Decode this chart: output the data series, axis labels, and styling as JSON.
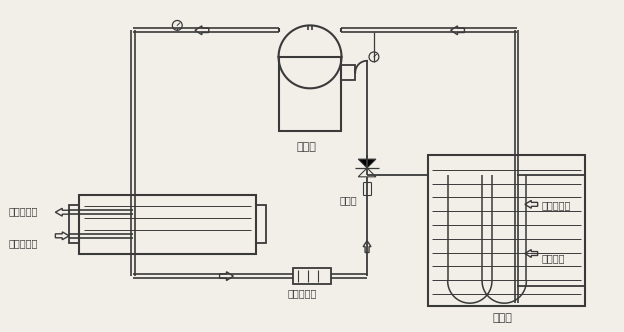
{
  "bg_color": "#f2efe9",
  "line_color": "#3a3a3a",
  "labels": {
    "compressor": "压缩机",
    "expansion_valve": "膨胀阀",
    "evaporator": "蒸发器",
    "dryer_filter": "干燥过滤器",
    "cooling_water_out": "冷却水出口",
    "cooling_water_in": "冷却水进口",
    "chilled_water_in": "冷冻水进口",
    "chilled_water_out": "冷水出口"
  },
  "font_size": 7
}
